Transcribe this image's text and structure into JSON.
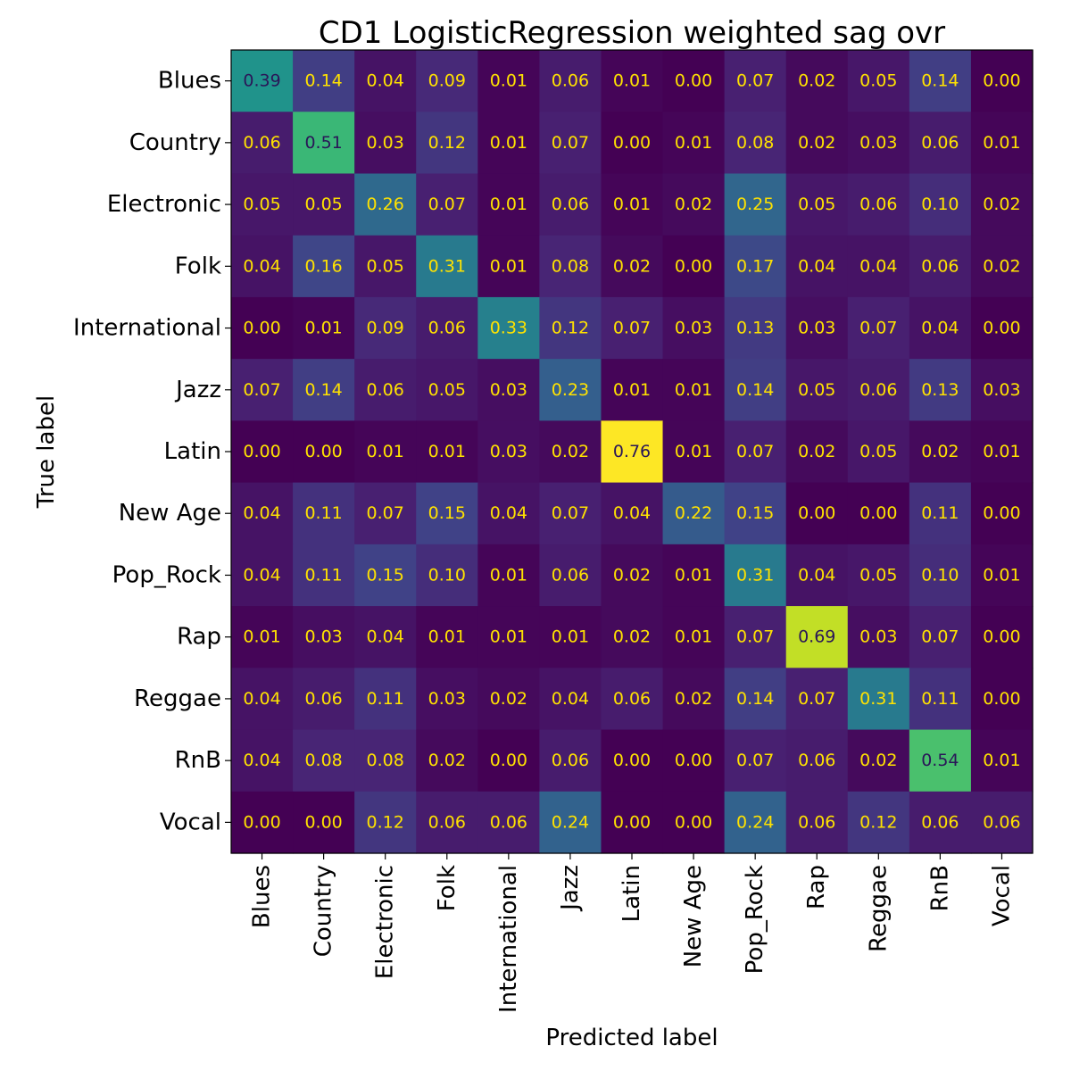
{
  "chart_data": {
    "type": "heatmap",
    "title": "CD1 LogisticRegression weighted sag ovr",
    "xlabel": "Predicted label",
    "ylabel": "True label",
    "categories": [
      "Blues",
      "Country",
      "Electronic",
      "Folk",
      "International",
      "Jazz",
      "Latin",
      "New Age",
      "Pop_Rock",
      "Rap",
      "Reggae",
      "RnB",
      "Vocal"
    ],
    "colormap": "viridis",
    "vmin": 0.0,
    "vmax": 0.76,
    "matrix": [
      [
        0.39,
        0.14,
        0.04,
        0.09,
        0.01,
        0.06,
        0.01,
        0.0,
        0.07,
        0.02,
        0.05,
        0.14,
        0.0
      ],
      [
        0.06,
        0.51,
        0.03,
        0.12,
        0.01,
        0.07,
        0.0,
        0.01,
        0.08,
        0.02,
        0.03,
        0.06,
        0.01
      ],
      [
        0.05,
        0.05,
        0.26,
        0.07,
        0.01,
        0.06,
        0.01,
        0.02,
        0.25,
        0.05,
        0.06,
        0.1,
        0.02
      ],
      [
        0.04,
        0.16,
        0.05,
        0.31,
        0.01,
        0.08,
        0.02,
        0.0,
        0.17,
        0.04,
        0.04,
        0.06,
        0.02
      ],
      [
        0.0,
        0.01,
        0.09,
        0.06,
        0.33,
        0.12,
        0.07,
        0.03,
        0.13,
        0.03,
        0.07,
        0.04,
        0.0
      ],
      [
        0.07,
        0.14,
        0.06,
        0.05,
        0.03,
        0.23,
        0.01,
        0.01,
        0.14,
        0.05,
        0.06,
        0.13,
        0.03
      ],
      [
        0.0,
        0.0,
        0.01,
        0.01,
        0.03,
        0.02,
        0.76,
        0.01,
        0.07,
        0.02,
        0.05,
        0.02,
        0.01
      ],
      [
        0.04,
        0.11,
        0.07,
        0.15,
        0.04,
        0.07,
        0.04,
        0.22,
        0.15,
        0.0,
        0.0,
        0.11,
        0.0
      ],
      [
        0.04,
        0.11,
        0.15,
        0.1,
        0.01,
        0.06,
        0.02,
        0.01,
        0.31,
        0.04,
        0.05,
        0.1,
        0.01
      ],
      [
        0.01,
        0.03,
        0.04,
        0.01,
        0.01,
        0.01,
        0.02,
        0.01,
        0.07,
        0.69,
        0.03,
        0.07,
        0.0
      ],
      [
        0.04,
        0.06,
        0.11,
        0.03,
        0.02,
        0.04,
        0.06,
        0.02,
        0.14,
        0.07,
        0.31,
        0.11,
        0.0
      ],
      [
        0.04,
        0.08,
        0.08,
        0.02,
        0.0,
        0.06,
        0.0,
        0.0,
        0.07,
        0.06,
        0.02,
        0.54,
        0.01
      ],
      [
        0.0,
        0.0,
        0.12,
        0.06,
        0.06,
        0.24,
        0.0,
        0.0,
        0.24,
        0.06,
        0.12,
        0.06,
        0.06
      ]
    ],
    "text_colors": {
      "on_dark": "#ffe200",
      "on_light": "#2a1658"
    }
  }
}
